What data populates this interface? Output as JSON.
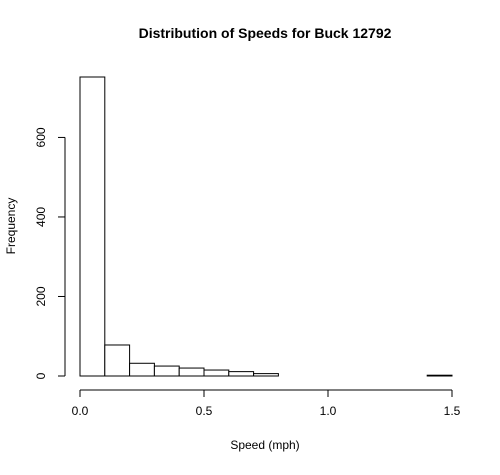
{
  "chart_data": {
    "type": "bar",
    "title": "Distribution of Speeds for Buck 12792",
    "xlabel": "Speed (mph)",
    "ylabel": "Frequency",
    "bins": [
      [
        0.0,
        0.1
      ],
      [
        0.1,
        0.2
      ],
      [
        0.2,
        0.3
      ],
      [
        0.3,
        0.4
      ],
      [
        0.4,
        0.5
      ],
      [
        0.5,
        0.6
      ],
      [
        0.6,
        0.7
      ],
      [
        0.7,
        0.8
      ],
      [
        0.8,
        0.9
      ],
      [
        0.9,
        1.0
      ],
      [
        1.0,
        1.1
      ],
      [
        1.1,
        1.2
      ],
      [
        1.2,
        1.3
      ],
      [
        1.3,
        1.4
      ],
      [
        1.4,
        1.5
      ]
    ],
    "values": [
      752,
      78,
      32,
      25,
      20,
      15,
      11,
      6,
      0,
      0,
      0,
      0,
      0,
      0,
      2
    ],
    "xlim": [
      0.0,
      1.5
    ],
    "ylim": [
      0,
      752
    ],
    "x_ticks": [
      0.0,
      0.5,
      1.0,
      1.5
    ],
    "x_tick_labels": [
      "0.0",
      "0.5",
      "1.0",
      "1.5"
    ],
    "y_ticks": [
      0,
      200,
      400,
      600
    ],
    "y_tick_labels": [
      "0",
      "200",
      "400",
      "600"
    ],
    "grid": false,
    "bar_fill": "#ffffff",
    "bar_stroke": "#000000"
  }
}
